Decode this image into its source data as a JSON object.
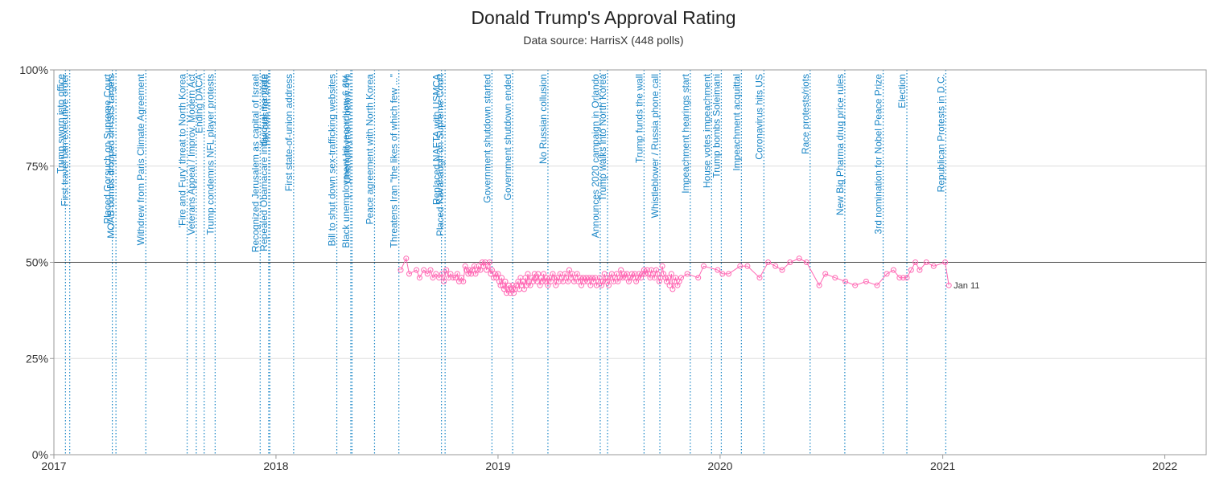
{
  "chart_data": {
    "type": "line",
    "title": "Donald Trump's Approval Rating",
    "subtitle": "Data source: HarrisX (448 polls)",
    "xlabel": "",
    "ylabel": "",
    "ylim": [
      0,
      100
    ],
    "yticks": [
      {
        "value": 0,
        "label": "0%"
      },
      {
        "value": 25,
        "label": "25%"
      },
      {
        "value": 50,
        "label": "50%"
      },
      {
        "value": 75,
        "label": "75%"
      },
      {
        "value": 100,
        "label": "100%"
      }
    ],
    "xlim": [
      "2017-01-01",
      "2022-03-10"
    ],
    "xticks": [
      {
        "date": "2017-01-01",
        "label": "2017"
      },
      {
        "date": "2018-01-01",
        "label": "2018"
      },
      {
        "date": "2019-01-01",
        "label": "2019"
      },
      {
        "date": "2020-01-01",
        "label": "2020"
      },
      {
        "date": "2021-01-01",
        "label": "2021"
      },
      {
        "date": "2022-01-01",
        "label": "2022"
      }
    ],
    "reference_line": 50,
    "grid": true,
    "series_color": "#ff69b4",
    "event_color": "#1a86c6",
    "events": [
      {
        "date": "2017-01-20",
        "label": "Trump sworn into office"
      },
      {
        "date": "2017-01-27",
        "label": "First travel ban executive order"
      },
      {
        "date": "2017-04-07",
        "label": "Placed Gorsuch on Supreme Court"
      },
      {
        "date": "2017-04-13",
        "label": "MOAB bombs dropped on ISIS targets"
      },
      {
        "date": "2017-06-01",
        "label": "Withdrew from Paris Climate Agreement"
      },
      {
        "date": "2017-08-08",
        "label": "'Fire and Fury' threat to North Korea"
      },
      {
        "date": "2017-08-23",
        "label": "Veterans Appeal / Improv. Modern Act"
      },
      {
        "date": "2017-09-05",
        "label": "Ending DACA"
      },
      {
        "date": "2017-09-23",
        "label": "Trump condemns NFL player protests"
      },
      {
        "date": "2017-12-06",
        "label": "Recognized Jerusalem as capital of Israel"
      },
      {
        "date": "2017-12-20",
        "label": "Repealed Obamacare individual mandate"
      },
      {
        "date": "2017-12-22",
        "label": "Tax cuts for 2018"
      },
      {
        "date": "2018-01-30",
        "label": "First state-of-union address"
      },
      {
        "date": "2018-04-11",
        "label": "Bill to shut down sex-trafficking websites"
      },
      {
        "date": "2018-05-04",
        "label": "Black unemployment hit record low 6.6%"
      },
      {
        "date": "2018-05-06",
        "label": "Unemployment below 4%"
      },
      {
        "date": "2018-06-12",
        "label": "Peace agreement with North Korea"
      },
      {
        "date": "2018-07-22",
        "label": "Threatens Iran \"the likes of which few ...\""
      },
      {
        "date": "2018-09-30",
        "label": "Replaced NAFTA with USMCA"
      },
      {
        "date": "2018-10-06",
        "label": "Placed Kavanaugh on Supreme Court"
      },
      {
        "date": "2018-12-22",
        "label": "Government shutdown started"
      },
      {
        "date": "2019-01-25",
        "label": "Government shutdown ended"
      },
      {
        "date": "2019-03-24",
        "label": "No Russian collusion"
      },
      {
        "date": "2019-06-18",
        "label": "Announces 2020 campaign in Orlando"
      },
      {
        "date": "2019-06-30",
        "label": "Trump walks into North Korea"
      },
      {
        "date": "2019-08-29",
        "label": "Trump funds the wall"
      },
      {
        "date": "2019-09-24",
        "label": "Whistleblower / Russia phone call"
      },
      {
        "date": "2019-11-13",
        "label": "Impeachment hearings start"
      },
      {
        "date": "2019-12-18",
        "label": "House votes impeachment"
      },
      {
        "date": "2020-01-03",
        "label": "Trump bombs Soleimani"
      },
      {
        "date": "2020-02-05",
        "label": "Impeachment acquittal"
      },
      {
        "date": "2020-03-13",
        "label": "Coronavirus hits US"
      },
      {
        "date": "2020-05-28",
        "label": "Race protests/riots"
      },
      {
        "date": "2020-07-24",
        "label": "New Big Pharma drug price rules"
      },
      {
        "date": "2020-09-25",
        "label": "3rd nomination for Nobel Peace Prize"
      },
      {
        "date": "2020-11-03",
        "label": "Election"
      },
      {
        "date": "2021-01-06",
        "label": "Republican Protests in D.C."
      }
    ],
    "series": [
      {
        "label_last": "Jan 11",
        "points": [
          [
            "2018-07-25",
            48
          ],
          [
            "2018-08-03",
            51
          ],
          [
            "2018-08-08",
            47
          ],
          [
            "2018-08-20",
            48
          ],
          [
            "2018-08-25",
            46
          ],
          [
            "2018-09-01",
            48
          ],
          [
            "2018-09-07",
            47
          ],
          [
            "2018-09-12",
            48
          ],
          [
            "2018-09-16",
            46
          ],
          [
            "2018-09-21",
            47
          ],
          [
            "2018-09-26",
            46
          ],
          [
            "2018-10-01",
            47
          ],
          [
            "2018-10-04",
            45
          ],
          [
            "2018-10-08",
            48
          ],
          [
            "2018-10-12",
            46
          ],
          [
            "2018-10-15",
            47
          ],
          [
            "2018-10-19",
            46
          ],
          [
            "2018-10-23",
            46
          ],
          [
            "2018-10-26",
            47
          ],
          [
            "2018-10-29",
            45
          ],
          [
            "2018-11-02",
            46
          ],
          [
            "2018-11-05",
            45
          ],
          [
            "2018-11-08",
            49
          ],
          [
            "2018-11-10",
            48
          ],
          [
            "2018-11-13",
            47
          ],
          [
            "2018-11-15",
            48
          ],
          [
            "2018-11-18",
            47
          ],
          [
            "2018-11-20",
            48
          ],
          [
            "2018-11-23",
            49
          ],
          [
            "2018-11-25",
            47
          ],
          [
            "2018-11-28",
            48
          ],
          [
            "2018-11-30",
            49
          ],
          [
            "2018-12-03",
            48
          ],
          [
            "2018-12-06",
            50
          ],
          [
            "2018-12-08",
            49
          ],
          [
            "2018-12-11",
            50
          ],
          [
            "2018-12-13",
            48
          ],
          [
            "2018-12-15",
            49
          ],
          [
            "2018-12-18",
            50
          ],
          [
            "2018-12-20",
            47
          ],
          [
            "2018-12-22",
            48
          ],
          [
            "2018-12-25",
            46
          ],
          [
            "2018-12-27",
            47
          ],
          [
            "2018-12-29",
            46
          ],
          [
            "2019-01-01",
            47
          ],
          [
            "2019-01-03",
            45
          ],
          [
            "2019-01-05",
            44
          ],
          [
            "2019-01-07",
            46
          ],
          [
            "2019-01-09",
            44
          ],
          [
            "2019-01-11",
            43
          ],
          [
            "2019-01-13",
            45
          ],
          [
            "2019-01-15",
            42
          ],
          [
            "2019-01-17",
            43
          ],
          [
            "2019-01-19",
            44
          ],
          [
            "2019-01-21",
            42
          ],
          [
            "2019-01-23",
            43
          ],
          [
            "2019-01-25",
            44
          ],
          [
            "2019-01-27",
            42
          ],
          [
            "2019-01-29",
            43
          ],
          [
            "2019-01-31",
            44
          ],
          [
            "2019-02-03",
            45
          ],
          [
            "2019-02-05",
            43
          ],
          [
            "2019-02-07",
            46
          ],
          [
            "2019-02-09",
            44
          ],
          [
            "2019-02-11",
            45
          ],
          [
            "2019-02-13",
            43
          ],
          [
            "2019-02-15",
            46
          ],
          [
            "2019-02-17",
            44
          ],
          [
            "2019-02-19",
            47
          ],
          [
            "2019-02-21",
            45
          ],
          [
            "2019-02-23",
            44
          ],
          [
            "2019-02-26",
            46
          ],
          [
            "2019-02-28",
            45
          ],
          [
            "2019-03-02",
            47
          ],
          [
            "2019-03-04",
            46
          ],
          [
            "2019-03-06",
            45
          ],
          [
            "2019-03-08",
            47
          ],
          [
            "2019-03-11",
            44
          ],
          [
            "2019-03-13",
            46
          ],
          [
            "2019-03-15",
            45
          ],
          [
            "2019-03-17",
            47
          ],
          [
            "2019-03-20",
            45
          ],
          [
            "2019-03-22",
            46
          ],
          [
            "2019-03-24",
            44
          ],
          [
            "2019-03-27",
            46
          ],
          [
            "2019-03-29",
            45
          ],
          [
            "2019-04-01",
            47
          ],
          [
            "2019-04-03",
            46
          ],
          [
            "2019-04-06",
            44
          ],
          [
            "2019-04-08",
            46
          ],
          [
            "2019-04-11",
            45
          ],
          [
            "2019-04-13",
            47
          ],
          [
            "2019-04-16",
            46
          ],
          [
            "2019-04-18",
            45
          ],
          [
            "2019-04-21",
            47
          ],
          [
            "2019-04-23",
            46
          ],
          [
            "2019-04-26",
            45
          ],
          [
            "2019-04-28",
            48
          ],
          [
            "2019-05-01",
            46
          ],
          [
            "2019-05-03",
            47
          ],
          [
            "2019-05-06",
            45
          ],
          [
            "2019-05-08",
            46
          ],
          [
            "2019-05-11",
            47
          ],
          [
            "2019-05-13",
            45
          ],
          [
            "2019-05-16",
            46
          ],
          [
            "2019-05-18",
            44
          ],
          [
            "2019-05-21",
            46
          ],
          [
            "2019-05-23",
            45
          ],
          [
            "2019-05-26",
            46
          ],
          [
            "2019-05-28",
            45
          ],
          [
            "2019-05-31",
            46
          ],
          [
            "2019-06-02",
            44
          ],
          [
            "2019-06-05",
            46
          ],
          [
            "2019-06-07",
            45
          ],
          [
            "2019-06-10",
            46
          ],
          [
            "2019-06-12",
            44
          ],
          [
            "2019-06-15",
            45
          ],
          [
            "2019-06-17",
            46
          ],
          [
            "2019-06-20",
            44
          ],
          [
            "2019-06-22",
            45
          ],
          [
            "2019-06-25",
            47
          ],
          [
            "2019-06-27",
            45
          ],
          [
            "2019-06-30",
            46
          ],
          [
            "2019-07-02",
            44
          ],
          [
            "2019-07-05",
            46
          ],
          [
            "2019-07-07",
            47
          ],
          [
            "2019-07-10",
            45
          ],
          [
            "2019-07-12",
            46
          ],
          [
            "2019-07-15",
            47
          ],
          [
            "2019-07-17",
            45
          ],
          [
            "2019-07-20",
            46
          ],
          [
            "2019-07-22",
            48
          ],
          [
            "2019-07-25",
            46
          ],
          [
            "2019-07-27",
            47
          ],
          [
            "2019-07-30",
            46
          ],
          [
            "2019-08-01",
            47
          ],
          [
            "2019-08-04",
            45
          ],
          [
            "2019-08-06",
            46
          ],
          [
            "2019-08-09",
            47
          ],
          [
            "2019-08-11",
            46
          ],
          [
            "2019-08-14",
            47
          ],
          [
            "2019-08-16",
            45
          ],
          [
            "2019-08-19",
            46
          ],
          [
            "2019-08-21",
            47
          ],
          [
            "2019-08-24",
            46
          ],
          [
            "2019-08-26",
            47
          ],
          [
            "2019-08-29",
            48
          ],
          [
            "2019-08-31",
            47
          ],
          [
            "2019-09-03",
            48
          ],
          [
            "2019-09-05",
            47
          ],
          [
            "2019-09-08",
            46
          ],
          [
            "2019-09-10",
            48
          ],
          [
            "2019-09-13",
            47
          ],
          [
            "2019-09-15",
            46
          ],
          [
            "2019-09-18",
            48
          ],
          [
            "2019-09-20",
            47
          ],
          [
            "2019-09-23",
            45
          ],
          [
            "2019-09-25",
            46
          ],
          [
            "2019-09-28",
            49
          ],
          [
            "2019-09-30",
            47
          ],
          [
            "2019-10-03",
            46
          ],
          [
            "2019-10-05",
            45
          ],
          [
            "2019-10-08",
            46
          ],
          [
            "2019-10-10",
            44
          ],
          [
            "2019-10-13",
            47
          ],
          [
            "2019-10-15",
            43
          ],
          [
            "2019-10-18",
            45
          ],
          [
            "2019-10-20",
            46
          ],
          [
            "2019-10-23",
            44
          ],
          [
            "2019-10-26",
            45
          ],
          [
            "2019-10-29",
            46
          ],
          [
            "2019-11-08",
            47
          ],
          [
            "2019-11-26",
            46
          ],
          [
            "2019-12-05",
            49
          ],
          [
            "2019-12-28",
            48
          ],
          [
            "2020-01-05",
            47
          ],
          [
            "2020-01-15",
            47
          ],
          [
            "2020-02-03",
            49
          ],
          [
            "2020-02-15",
            49
          ],
          [
            "2020-03-06",
            46
          ],
          [
            "2020-03-20",
            50
          ],
          [
            "2020-04-01",
            49
          ],
          [
            "2020-04-12",
            48
          ],
          [
            "2020-04-25",
            50
          ],
          [
            "2020-05-10",
            51
          ],
          [
            "2020-05-22",
            50
          ],
          [
            "2020-06-12",
            44
          ],
          [
            "2020-06-22",
            47
          ],
          [
            "2020-07-08",
            46
          ],
          [
            "2020-07-25",
            45
          ],
          [
            "2020-08-10",
            44
          ],
          [
            "2020-08-28",
            45
          ],
          [
            "2020-09-15",
            44
          ],
          [
            "2020-10-01",
            47
          ],
          [
            "2020-10-12",
            48
          ],
          [
            "2020-10-22",
            46
          ],
          [
            "2020-10-28",
            46
          ],
          [
            "2020-11-03",
            46
          ],
          [
            "2020-11-10",
            48
          ],
          [
            "2020-11-17",
            50
          ],
          [
            "2020-11-24",
            48
          ],
          [
            "2020-12-05",
            50
          ],
          [
            "2020-12-17",
            49
          ],
          [
            "2021-01-05",
            50
          ],
          [
            "2021-01-11",
            44
          ]
        ]
      }
    ]
  }
}
